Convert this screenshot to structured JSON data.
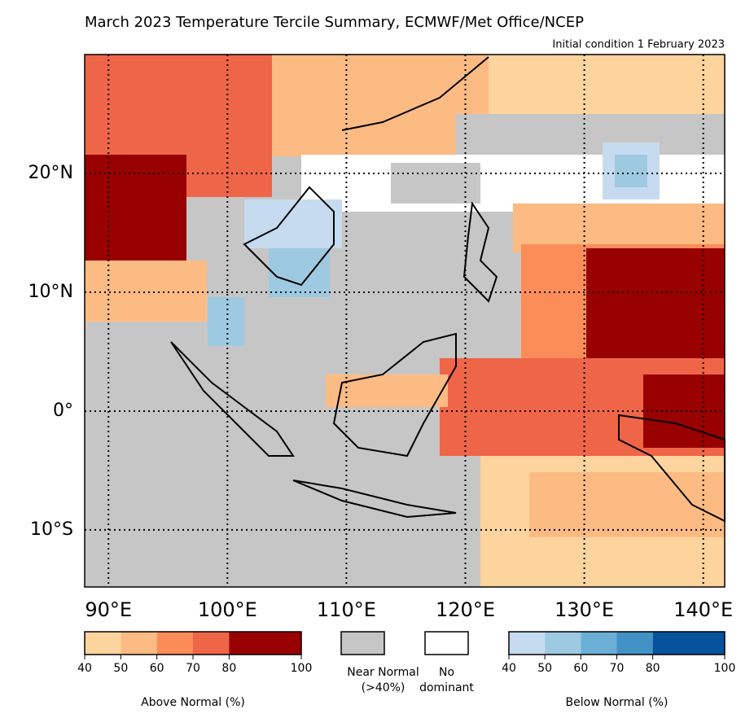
{
  "title": "March 2023 Temperature Tercile Summary, ECMWF/Met Office/NCEP",
  "subtitle": "Initial condition 1 February 2023",
  "map": {
    "xlim": [
      88,
      141.8
    ],
    "ylim": [
      -14.8,
      30
    ],
    "xticks": [
      {
        "value": 90,
        "label": "90°E"
      },
      {
        "value": 100,
        "label": "100°E"
      },
      {
        "value": 110,
        "label": "110°E"
      },
      {
        "value": 120,
        "label": "120°E"
      },
      {
        "value": 130,
        "label": "130°E"
      },
      {
        "value": 140,
        "label": "140°E"
      }
    ],
    "yticks": [
      {
        "value": 20,
        "label": "20°N"
      },
      {
        "value": 10,
        "label": "10°N"
      },
      {
        "value": 0,
        "label": "0°"
      },
      {
        "value": -10,
        "label": "10°S"
      }
    ]
  },
  "legend": {
    "above": {
      "label": "Above Normal (%)",
      "ticks": [
        40,
        50,
        60,
        70,
        80,
        100
      ],
      "colors": [
        "#fdd49e",
        "#fdbb84",
        "#fc8d59",
        "#ef6548",
        "#990000"
      ]
    },
    "near": {
      "lines": [
        "Near Normal",
        "(>40%)"
      ],
      "color": "#c6c6c6"
    },
    "none": {
      "lines": [
        "No",
        "dominant"
      ],
      "color": "#ffffff"
    },
    "below": {
      "label": "Below Normal (%)",
      "ticks": [
        40,
        50,
        60,
        70,
        80,
        100
      ],
      "colors": [
        "#c6dbef",
        "#9ecae1",
        "#6baed6",
        "#4292c6",
        "#08519c"
      ]
    }
  }
}
